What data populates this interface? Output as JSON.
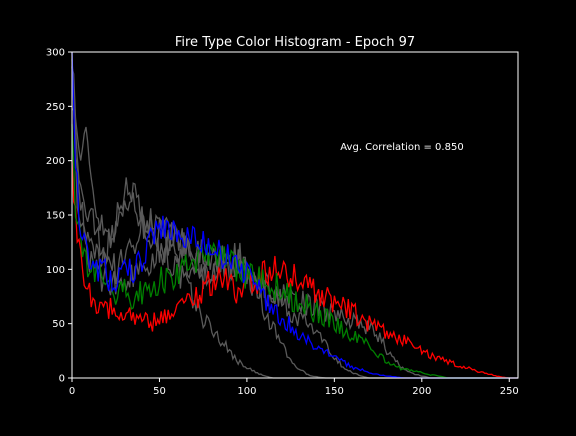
{
  "chart_data": {
    "type": "line",
    "title": "Fire Type Color Histogram - Epoch 97",
    "annotation": "Avg. Correlation = 0.850",
    "xlabel": "",
    "ylabel": "",
    "xlim": [
      0,
      255
    ],
    "ylim": [
      0,
      300
    ],
    "xticks": [
      0,
      50,
      100,
      150,
      200,
      250
    ],
    "yticks": [
      0,
      50,
      100,
      150,
      200,
      250,
      300
    ],
    "background": "#000000",
    "axis_color": "#ffffff",
    "grid": false,
    "series": [
      {
        "color": "#5a5a5a",
        "points": [
          [
            0,
            300
          ],
          [
            2,
            245
          ],
          [
            4,
            205
          ],
          [
            6,
            210
          ],
          [
            8,
            220
          ],
          [
            10,
            205
          ],
          [
            12,
            170
          ],
          [
            15,
            150
          ],
          [
            18,
            140
          ],
          [
            22,
            130
          ],
          [
            26,
            150
          ],
          [
            30,
            175
          ],
          [
            34,
            165
          ],
          [
            38,
            150
          ],
          [
            42,
            140
          ],
          [
            46,
            130
          ],
          [
            50,
            120
          ],
          [
            55,
            110
          ],
          [
            60,
            100
          ],
          [
            65,
            85
          ],
          [
            70,
            70
          ],
          [
            75,
            55
          ],
          [
            80,
            45
          ],
          [
            85,
            35
          ],
          [
            90,
            25
          ],
          [
            95,
            15
          ],
          [
            100,
            10
          ],
          [
            105,
            5
          ],
          [
            110,
            2
          ],
          [
            115,
            0
          ],
          [
            255,
            0
          ]
        ]
      },
      {
        "color": "#5a5a5a",
        "points": [
          [
            0,
            290
          ],
          [
            3,
            200
          ],
          [
            6,
            160
          ],
          [
            10,
            150
          ],
          [
            15,
            130
          ],
          [
            20,
            110
          ],
          [
            25,
            100
          ],
          [
            30,
            110
          ],
          [
            35,
            125
          ],
          [
            40,
            140
          ],
          [
            45,
            145
          ],
          [
            50,
            140
          ],
          [
            55,
            135
          ],
          [
            60,
            125
          ],
          [
            65,
            120
          ],
          [
            70,
            105
          ],
          [
            75,
            100
          ],
          [
            80,
            95
          ],
          [
            85,
            100
          ],
          [
            90,
            110
          ],
          [
            95,
            115
          ],
          [
            100,
            100
          ],
          [
            105,
            80
          ],
          [
            110,
            60
          ],
          [
            115,
            45
          ],
          [
            120,
            30
          ],
          [
            125,
            15
          ],
          [
            130,
            8
          ],
          [
            135,
            3
          ],
          [
            140,
            1
          ],
          [
            145,
            0
          ],
          [
            255,
            0
          ]
        ]
      },
      {
        "color": "#5a5a5a",
        "points": [
          [
            0,
            260
          ],
          [
            3,
            190
          ],
          [
            6,
            150
          ],
          [
            10,
            120
          ],
          [
            15,
            110
          ],
          [
            20,
            120
          ],
          [
            25,
            140
          ],
          [
            30,
            160
          ],
          [
            35,
            170
          ],
          [
            40,
            150
          ],
          [
            45,
            140
          ],
          [
            50,
            135
          ],
          [
            55,
            130
          ],
          [
            60,
            130
          ],
          [
            65,
            125
          ],
          [
            70,
            120
          ],
          [
            75,
            115
          ],
          [
            80,
            110
          ],
          [
            85,
            105
          ],
          [
            90,
            100
          ],
          [
            95,
            105
          ],
          [
            100,
            95
          ],
          [
            105,
            90
          ],
          [
            110,
            85
          ],
          [
            115,
            80
          ],
          [
            120,
            70
          ],
          [
            125,
            60
          ],
          [
            130,
            55
          ],
          [
            135,
            50
          ],
          [
            140,
            40
          ],
          [
            145,
            30
          ],
          [
            150,
            20
          ],
          [
            155,
            10
          ],
          [
            160,
            5
          ],
          [
            165,
            2
          ],
          [
            170,
            0
          ],
          [
            255,
            0
          ]
        ]
      },
      {
        "color": "#5a5a5a",
        "points": [
          [
            0,
            280
          ],
          [
            3,
            170
          ],
          [
            6,
            140
          ],
          [
            10,
            110
          ],
          [
            15,
            95
          ],
          [
            20,
            90
          ],
          [
            25,
            85
          ],
          [
            30,
            90
          ],
          [
            35,
            95
          ],
          [
            40,
            100
          ],
          [
            45,
            110
          ],
          [
            50,
            120
          ],
          [
            55,
            115
          ],
          [
            60,
            110
          ],
          [
            65,
            105
          ],
          [
            70,
            100
          ],
          [
            75,
            95
          ],
          [
            80,
            100
          ],
          [
            85,
            110
          ],
          [
            90,
            105
          ],
          [
            95,
            100
          ],
          [
            100,
            90
          ],
          [
            110,
            80
          ],
          [
            120,
            75
          ],
          [
            130,
            70
          ],
          [
            140,
            65
          ],
          [
            150,
            60
          ],
          [
            160,
            55
          ],
          [
            165,
            50
          ],
          [
            170,
            45
          ],
          [
            175,
            40
          ],
          [
            180,
            25
          ],
          [
            185,
            15
          ],
          [
            190,
            8
          ],
          [
            195,
            4
          ],
          [
            200,
            2
          ],
          [
            205,
            0
          ],
          [
            255,
            0
          ]
        ]
      },
      {
        "color": "#ff0000",
        "points": [
          [
            0,
            200
          ],
          [
            2,
            150
          ],
          [
            4,
            120
          ],
          [
            6,
            100
          ],
          [
            8,
            90
          ],
          [
            10,
            80
          ],
          [
            15,
            70
          ],
          [
            20,
            65
          ],
          [
            25,
            60
          ],
          [
            30,
            62
          ],
          [
            35,
            58
          ],
          [
            40,
            55
          ],
          [
            45,
            50
          ],
          [
            50,
            55
          ],
          [
            55,
            60
          ],
          [
            60,
            65
          ],
          [
            65,
            70
          ],
          [
            70,
            75
          ],
          [
            75,
            80
          ],
          [
            80,
            90
          ],
          [
            85,
            95
          ],
          [
            90,
            85
          ],
          [
            95,
            80
          ],
          [
            100,
            85
          ],
          [
            105,
            90
          ],
          [
            110,
            95
          ],
          [
            115,
            100
          ],
          [
            120,
            100
          ],
          [
            125,
            95
          ],
          [
            130,
            90
          ],
          [
            135,
            85
          ],
          [
            140,
            80
          ],
          [
            145,
            75
          ],
          [
            150,
            70
          ],
          [
            155,
            65
          ],
          [
            160,
            60
          ],
          [
            165,
            55
          ],
          [
            170,
            50
          ],
          [
            175,
            45
          ],
          [
            180,
            40
          ],
          [
            185,
            38
          ],
          [
            190,
            35
          ],
          [
            195,
            30
          ],
          [
            200,
            25
          ],
          [
            205,
            20
          ],
          [
            210,
            18
          ],
          [
            215,
            15
          ],
          [
            220,
            12
          ],
          [
            225,
            10
          ],
          [
            230,
            7
          ],
          [
            235,
            5
          ],
          [
            240,
            3
          ],
          [
            245,
            1
          ],
          [
            250,
            0
          ],
          [
            255,
            0
          ]
        ]
      },
      {
        "color": "#008000",
        "points": [
          [
            0,
            220
          ],
          [
            2,
            160
          ],
          [
            4,
            140
          ],
          [
            6,
            125
          ],
          [
            8,
            110
          ],
          [
            10,
            100
          ],
          [
            15,
            90
          ],
          [
            20,
            85
          ],
          [
            25,
            80
          ],
          [
            30,
            78
          ],
          [
            35,
            75
          ],
          [
            40,
            80
          ],
          [
            45,
            85
          ],
          [
            50,
            88
          ],
          [
            55,
            90
          ],
          [
            60,
            95
          ],
          [
            65,
            100
          ],
          [
            70,
            105
          ],
          [
            75,
            110
          ],
          [
            80,
            115
          ],
          [
            85,
            112
          ],
          [
            90,
            108
          ],
          [
            95,
            100
          ],
          [
            100,
            95
          ],
          [
            105,
            92
          ],
          [
            110,
            90
          ],
          [
            115,
            85
          ],
          [
            120,
            80
          ],
          [
            125,
            75
          ],
          [
            130,
            70
          ],
          [
            135,
            65
          ],
          [
            140,
            60
          ],
          [
            145,
            55
          ],
          [
            150,
            50
          ],
          [
            155,
            45
          ],
          [
            160,
            40
          ],
          [
            165,
            35
          ],
          [
            170,
            30
          ],
          [
            175,
            22
          ],
          [
            180,
            15
          ],
          [
            185,
            10
          ],
          [
            190,
            8
          ],
          [
            195,
            6
          ],
          [
            200,
            5
          ],
          [
            205,
            3
          ],
          [
            210,
            2
          ],
          [
            215,
            0
          ],
          [
            255,
            0
          ]
        ]
      },
      {
        "color": "#0000ff",
        "points": [
          [
            0,
            300
          ],
          [
            1,
            260
          ],
          [
            2,
            200
          ],
          [
            4,
            150
          ],
          [
            6,
            130
          ],
          [
            8,
            115
          ],
          [
            10,
            105
          ],
          [
            15,
            100
          ],
          [
            20,
            95
          ],
          [
            25,
            90
          ],
          [
            30,
            95
          ],
          [
            35,
            100
          ],
          [
            40,
            110
          ],
          [
            45,
            130
          ],
          [
            50,
            140
          ],
          [
            55,
            138
          ],
          [
            60,
            135
          ],
          [
            65,
            130
          ],
          [
            70,
            128
          ],
          [
            75,
            125
          ],
          [
            80,
            120
          ],
          [
            85,
            115
          ],
          [
            90,
            110
          ],
          [
            95,
            100
          ],
          [
            100,
            95
          ],
          [
            105,
            85
          ],
          [
            110,
            75
          ],
          [
            115,
            65
          ],
          [
            120,
            55
          ],
          [
            125,
            48
          ],
          [
            130,
            40
          ],
          [
            135,
            35
          ],
          [
            140,
            30
          ],
          [
            145,
            25
          ],
          [
            150,
            20
          ],
          [
            155,
            15
          ],
          [
            160,
            10
          ],
          [
            165,
            8
          ],
          [
            170,
            5
          ],
          [
            175,
            3
          ],
          [
            180,
            2
          ],
          [
            185,
            1
          ],
          [
            190,
            0
          ],
          [
            255,
            0
          ]
        ]
      }
    ]
  }
}
